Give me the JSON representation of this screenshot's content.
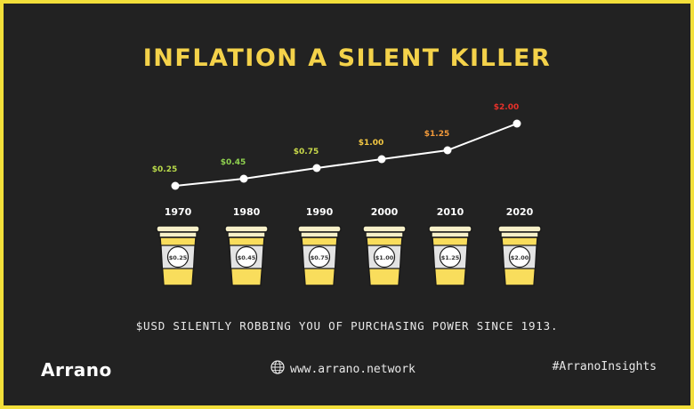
{
  "title": "INFLATION A SILENT KILLER",
  "subtitle": "$USD SILENTLY ROBBING YOU OF PURCHASING POWER SINCE 1913.",
  "brand": "Arrano",
  "website": "www.arrano.network",
  "hashtag": "#ArranoInsights",
  "icons": {
    "website": "globe-icon",
    "cup": "coffee-cup-icon"
  },
  "colors": {
    "frame": "#f2df3a",
    "background": "#222222",
    "title": "#f4d24a",
    "line": "#ffffff",
    "cup_body": "#f9dd5c",
    "cup_lid": "#f7f0c8",
    "cup_sleeve": "#e3e3e3"
  },
  "chart_data": {
    "type": "line",
    "categories": [
      "1970",
      "1980",
      "1990",
      "2000",
      "2010",
      "2020"
    ],
    "values": [
      0.25,
      0.45,
      0.75,
      1.0,
      1.25,
      2.0
    ],
    "labels": [
      "$0.25",
      "$0.45",
      "$0.75",
      "$1.00",
      "$1.25",
      "$2.00"
    ],
    "label_colors": [
      "#b8d94a",
      "#8fd14f",
      "#c8d84a",
      "#f4c842",
      "#f39a3a",
      "#e8312a"
    ],
    "ylim": [
      0.25,
      2.0
    ],
    "grid": false,
    "legend": "none"
  }
}
